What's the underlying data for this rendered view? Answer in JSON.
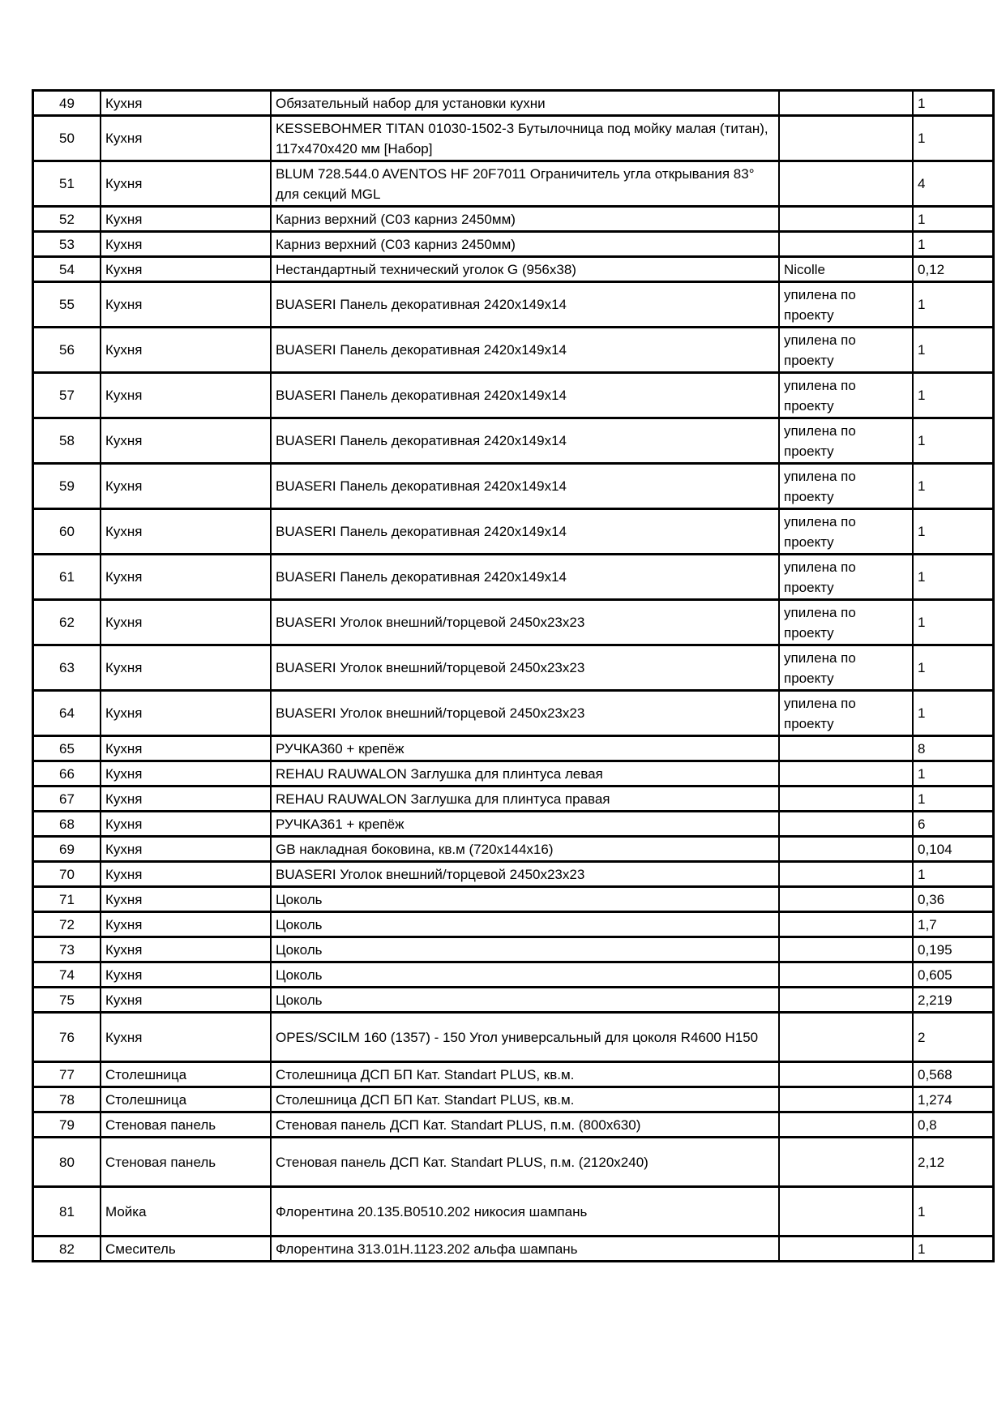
{
  "colors": {
    "background": "#ffffff",
    "text": "#000000",
    "border": "#000000"
  },
  "table": {
    "rows": [
      {
        "num": "49",
        "category": "Кухня",
        "description": "Обязательный набор для установки кухни",
        "note": "",
        "qty": "1",
        "h": "s"
      },
      {
        "num": "50",
        "category": "Кухня",
        "description": "KESSEBOHMER TITAN 01030-1502-3 Бутылочница под мойку малая (титан), 117х470х420 мм [Набор]",
        "note": "",
        "qty": "1",
        "h": "d"
      },
      {
        "num": "51",
        "category": "Кухня",
        "description": "BLUM 728.544.0 AVENTOS HF 20F7011 Ограничитель угла открывания  83° для секций MGL",
        "note": "",
        "qty": "4",
        "h": "d"
      },
      {
        "num": "52",
        "category": "Кухня",
        "description": "Карниз верхний (С03 карниз 2450мм)",
        "note": "",
        "qty": "1",
        "h": "s"
      },
      {
        "num": "53",
        "category": "Кухня",
        "description": "Карниз верхний (С03 карниз 2450мм)",
        "note": "",
        "qty": "1",
        "h": "s"
      },
      {
        "num": "54",
        "category": "Кухня",
        "description": "Нестандартный технический уголок G (956х38)",
        "note": "Nicolle",
        "qty": "0,12",
        "h": "s"
      },
      {
        "num": "55",
        "category": "Кухня",
        "description": "BUASERI Панель декоративная 2420х149х14",
        "note": "упилена по проекту",
        "qty": "1",
        "h": "d"
      },
      {
        "num": "56",
        "category": "Кухня",
        "description": "BUASERI Панель декоративная 2420х149х14",
        "note": "упилена по проекту",
        "qty": "1",
        "h": "d"
      },
      {
        "num": "57",
        "category": "Кухня",
        "description": "BUASERI Панель декоративная 2420х149х14",
        "note": "упилена по проекту",
        "qty": "1",
        "h": "d"
      },
      {
        "num": "58",
        "category": "Кухня",
        "description": "BUASERI Панель декоративная 2420х149х14",
        "note": "упилена по проекту",
        "qty": "1",
        "h": "d"
      },
      {
        "num": "59",
        "category": "Кухня",
        "description": "BUASERI Панель декоративная 2420х149х14",
        "note": "упилена по проекту",
        "qty": "1",
        "h": "d"
      },
      {
        "num": "60",
        "category": "Кухня",
        "description": "BUASERI Панель декоративная 2420х149х14",
        "note": "упилена по проекту",
        "qty": "1",
        "h": "d"
      },
      {
        "num": "61",
        "category": "Кухня",
        "description": "BUASERI Панель декоративная 2420х149х14",
        "note": "упилена по проекту",
        "qty": "1",
        "h": "d"
      },
      {
        "num": "62",
        "category": "Кухня",
        "description": "BUASERI Уголок внешний/торцевой 2450х23х23",
        "note": "упилена по проекту",
        "qty": "1",
        "h": "d"
      },
      {
        "num": "63",
        "category": "Кухня",
        "description": "BUASERI Уголок внешний/торцевой 2450х23х23",
        "note": "упилена по проекту",
        "qty": "1",
        "h": "d"
      },
      {
        "num": "64",
        "category": "Кухня",
        "description": "BUASERI Уголок внешний/торцевой 2450х23х23",
        "note": "упилена по проекту",
        "qty": "1",
        "h": "d"
      },
      {
        "num": "65",
        "category": "Кухня",
        "description": "РУЧКА360 + крепёж",
        "note": "",
        "qty": "8",
        "h": "s"
      },
      {
        "num": "66",
        "category": "Кухня",
        "description": "REHAU RAUWALON Заглушка для плинтуса левая",
        "note": "",
        "qty": "1",
        "h": "s"
      },
      {
        "num": "67",
        "category": "Кухня",
        "description": "REHAU RAUWALON Заглушка для плинтуса правая",
        "note": "",
        "qty": "1",
        "h": "s"
      },
      {
        "num": "68",
        "category": "Кухня",
        "description": "РУЧКА361 + крепёж",
        "note": "",
        "qty": "6",
        "h": "s"
      },
      {
        "num": "69",
        "category": "Кухня",
        "description": "GB накладная боковина, кв.м (720х144х16)",
        "note": "",
        "qty": "0,104",
        "h": "s"
      },
      {
        "num": "70",
        "category": "Кухня",
        "description": "BUASERI Уголок внешний/торцевой 2450х23х23",
        "note": "",
        "qty": "1",
        "h": "s"
      },
      {
        "num": "71",
        "category": "Кухня",
        "description": "Цоколь",
        "note": "",
        "qty": "0,36",
        "h": "s"
      },
      {
        "num": "72",
        "category": "Кухня",
        "description": "Цоколь",
        "note": "",
        "qty": "1,7",
        "h": "s"
      },
      {
        "num": "73",
        "category": "Кухня",
        "description": "Цоколь",
        "note": "",
        "qty": "0,195",
        "h": "s"
      },
      {
        "num": "74",
        "category": "Кухня",
        "description": "Цоколь",
        "note": "",
        "qty": "0,605",
        "h": "s"
      },
      {
        "num": "75",
        "category": "Кухня",
        "description": "Цоколь",
        "note": "",
        "qty": "2,219",
        "h": "s"
      },
      {
        "num": "76",
        "category": "Кухня",
        "description": "OPES/SCILM 160 (1357) - 150 Угол универсальный  для цоколя R4600 H150",
        "note": "",
        "qty": "2",
        "h": "t"
      },
      {
        "num": "77",
        "category": "Столешница",
        "description": "Столешница ДСП БП Кат. Standart PLUS, кв.м.",
        "note": "",
        "qty": "0,568",
        "h": "s"
      },
      {
        "num": "78",
        "category": "Столешница",
        "description": "Столешница ДСП БП Кат. Standart PLUS, кв.м.",
        "note": "",
        "qty": "1,274",
        "h": "s"
      },
      {
        "num": "79",
        "category": "Стеновая панель",
        "description": "Стеновая панель ДСП Кат. Standart PLUS, п.м. (800х630)",
        "note": "",
        "qty": "0,8",
        "h": "s"
      },
      {
        "num": "80",
        "category": "Стеновая панель",
        "description": "Стеновая панель ДСП Кат. Standart PLUS, п.м. (2120х240)",
        "note": "",
        "qty": "2,12",
        "h": "t"
      },
      {
        "num": "81",
        "category": "Мойка",
        "description": "Флорентина 20.135.В0510.202 никосия шампань",
        "note": "",
        "qty": "1",
        "h": "t",
        "desc_top": true
      },
      {
        "num": "82",
        "category": "Смеситель",
        "description": "Флорентина 313.01Н.1123.202 альфа шампань",
        "note": "",
        "qty": "1",
        "h": "s"
      }
    ]
  }
}
